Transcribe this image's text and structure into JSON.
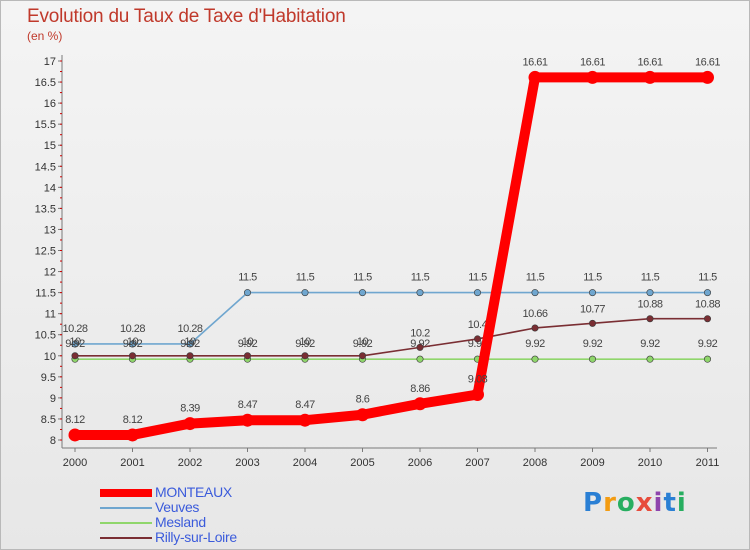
{
  "chart_data": {
    "type": "line",
    "title": "Evolution du Taux de Taxe d'Habitation",
    "subtitle": "(en %)",
    "x": [
      "2000",
      "2001",
      "2002",
      "2003",
      "2004",
      "2005",
      "2006",
      "2007",
      "2008",
      "2009",
      "2010",
      "2011"
    ],
    "ylim": [
      8,
      17
    ],
    "yticks": [
      "8",
      "8.5",
      "9",
      "9.5",
      "10",
      "10.5",
      "11",
      "11.5",
      "12",
      "12.5",
      "13",
      "13.5",
      "14",
      "14.5",
      "15",
      "15.5",
      "16",
      "16.5",
      "17"
    ],
    "grid": false,
    "legend": "bottom-left",
    "series": [
      {
        "name": "MONTEAUX",
        "color": "#ff0000",
        "labels": true,
        "values": [
          8.12,
          8.12,
          8.39,
          8.47,
          8.47,
          8.6,
          8.86,
          9.08,
          16.61,
          16.61,
          16.61,
          16.61
        ]
      },
      {
        "name": "Veuves",
        "color": "#6fa6cf",
        "labels": true,
        "values": [
          10.28,
          10.28,
          10.28,
          11.5,
          11.5,
          11.5,
          11.5,
          11.5,
          11.5,
          11.5,
          11.5,
          11.5
        ]
      },
      {
        "name": "Mesland",
        "color": "#8fd66b",
        "labels": true,
        "values": [
          9.92,
          9.92,
          9.92,
          9.92,
          9.92,
          9.92,
          9.92,
          9.92,
          9.92,
          9.92,
          9.92,
          9.92
        ]
      },
      {
        "name": "Rilly-sur-Loire",
        "color": "#7a2e33",
        "labels": true,
        "values": [
          10,
          10,
          10,
          10,
          10,
          10,
          10.2,
          10.4,
          10.66,
          10.77,
          10.88,
          10.88
        ]
      }
    ]
  },
  "legend": {
    "items": [
      {
        "label": "MONTEAUX",
        "color": "#ff0000"
      },
      {
        "label": "Veuves",
        "color": "#6fa6cf"
      },
      {
        "label": "Mesland",
        "color": "#8fd66b"
      },
      {
        "label": "Rilly-sur-Loire",
        "color": "#7a2e33"
      }
    ]
  },
  "logo": {
    "letters": [
      "P",
      "r",
      "o",
      "x",
      "i",
      "t",
      "i"
    ]
  }
}
